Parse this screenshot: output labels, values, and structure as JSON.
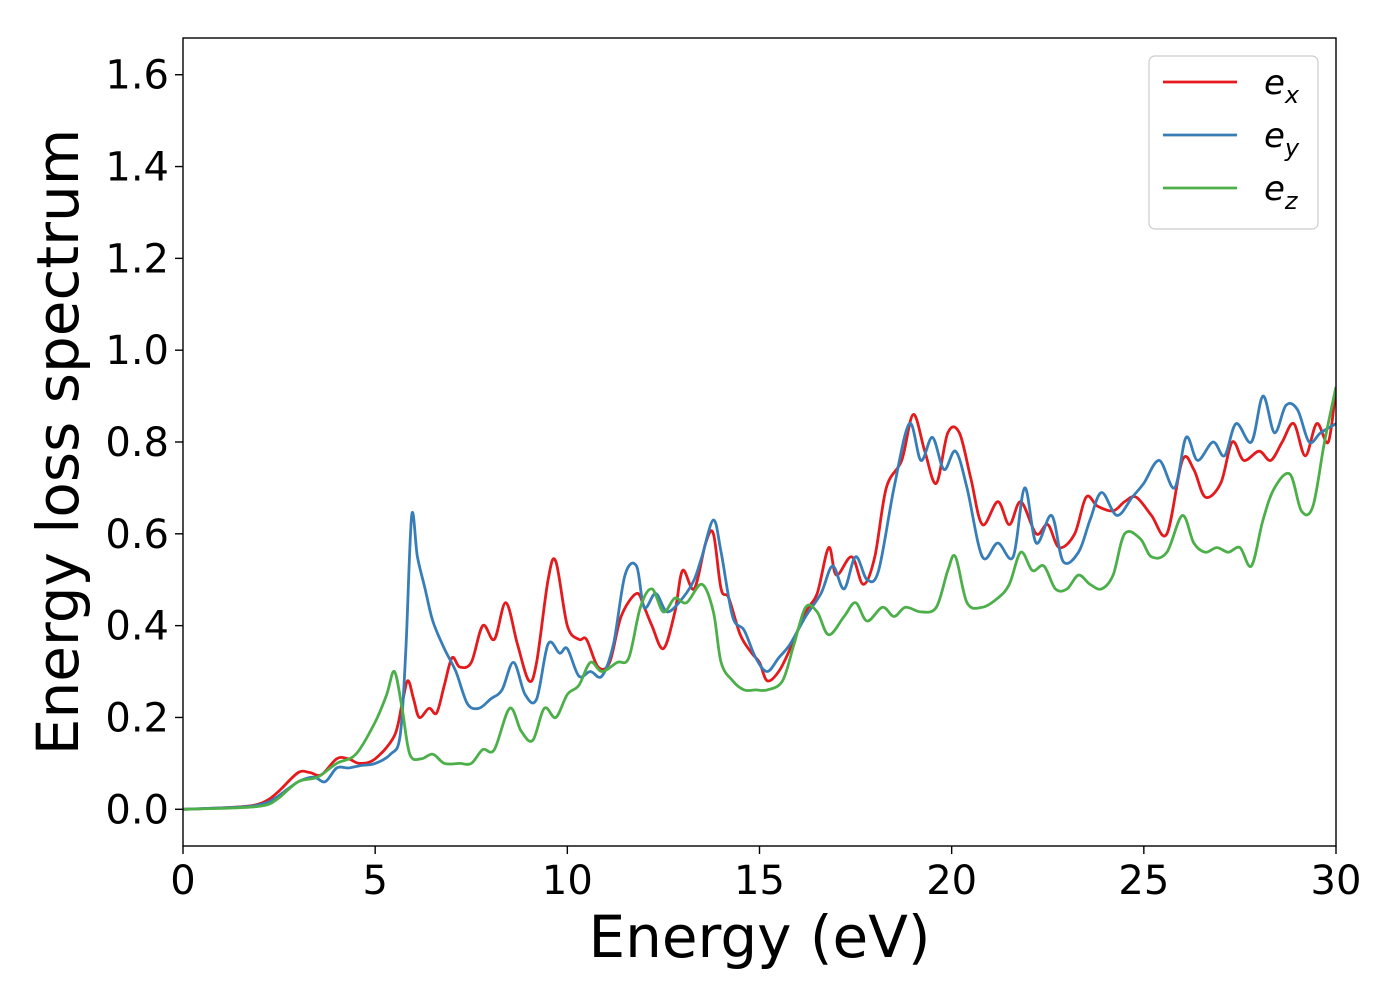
{
  "chart_data": {
    "type": "line",
    "xlabel": "Energy (eV)",
    "ylabel": "Energy loss spectrum",
    "xlim": [
      0,
      30
    ],
    "ylim": [
      -0.08,
      1.68
    ],
    "x_ticks": [
      0,
      5,
      10,
      15,
      20,
      25,
      30
    ],
    "x_tick_labels": [
      "0",
      "5",
      "10",
      "15",
      "20",
      "25",
      "30"
    ],
    "y_ticks": [
      0.0,
      0.2,
      0.4,
      0.6,
      0.8,
      1.0,
      1.2,
      1.4,
      1.6
    ],
    "y_tick_labels": [
      "0.0",
      "0.2",
      "0.4",
      "0.6",
      "0.8",
      "1.0",
      "1.2",
      "1.4",
      "1.6"
    ],
    "grid": false,
    "legend_position": "top-right",
    "series": [
      {
        "name": "e",
        "subscript": "x",
        "color": "#e41a1c",
        "points": [
          [
            0,
            0
          ],
          [
            1,
            0.003
          ],
          [
            1.8,
            0.008
          ],
          [
            2.2,
            0.02
          ],
          [
            2.5,
            0.04
          ],
          [
            3.0,
            0.08
          ],
          [
            3.3,
            0.08
          ],
          [
            3.6,
            0.075
          ],
          [
            4.0,
            0.11
          ],
          [
            4.3,
            0.11
          ],
          [
            4.6,
            0.1
          ],
          [
            5.0,
            0.11
          ],
          [
            5.5,
            0.16
          ],
          [
            5.7,
            0.23
          ],
          [
            5.85,
            0.28
          ],
          [
            6.0,
            0.24
          ],
          [
            6.15,
            0.2
          ],
          [
            6.4,
            0.22
          ],
          [
            6.6,
            0.21
          ],
          [
            6.8,
            0.27
          ],
          [
            7.0,
            0.33
          ],
          [
            7.2,
            0.31
          ],
          [
            7.5,
            0.32
          ],
          [
            7.8,
            0.4
          ],
          [
            8.1,
            0.37
          ],
          [
            8.4,
            0.45
          ],
          [
            8.7,
            0.36
          ],
          [
            9.0,
            0.28
          ],
          [
            9.2,
            0.32
          ],
          [
            9.5,
            0.5
          ],
          [
            9.7,
            0.54
          ],
          [
            10.0,
            0.4
          ],
          [
            10.3,
            0.37
          ],
          [
            10.5,
            0.37
          ],
          [
            10.8,
            0.31
          ],
          [
            11.1,
            0.32
          ],
          [
            11.4,
            0.42
          ],
          [
            11.8,
            0.47
          ],
          [
            12.0,
            0.44
          ],
          [
            12.2,
            0.4
          ],
          [
            12.5,
            0.35
          ],
          [
            12.8,
            0.43
          ],
          [
            13.0,
            0.52
          ],
          [
            13.3,
            0.48
          ],
          [
            13.6,
            0.58
          ],
          [
            13.8,
            0.6
          ],
          [
            14.0,
            0.48
          ],
          [
            14.2,
            0.46
          ],
          [
            14.5,
            0.38
          ],
          [
            14.8,
            0.34
          ],
          [
            15.0,
            0.32
          ],
          [
            15.2,
            0.28
          ],
          [
            15.5,
            0.3
          ],
          [
            15.8,
            0.35
          ],
          [
            16.2,
            0.43
          ],
          [
            16.5,
            0.47
          ],
          [
            16.8,
            0.57
          ],
          [
            17.0,
            0.51
          ],
          [
            17.4,
            0.55
          ],
          [
            17.7,
            0.49
          ],
          [
            18.0,
            0.55
          ],
          [
            18.3,
            0.7
          ],
          [
            18.7,
            0.76
          ],
          [
            19.0,
            0.86
          ],
          [
            19.3,
            0.78
          ],
          [
            19.6,
            0.71
          ],
          [
            19.9,
            0.82
          ],
          [
            20.2,
            0.82
          ],
          [
            20.5,
            0.72
          ],
          [
            20.8,
            0.62
          ],
          [
            21.2,
            0.67
          ],
          [
            21.5,
            0.62
          ],
          [
            21.8,
            0.67
          ],
          [
            22.2,
            0.6
          ],
          [
            22.5,
            0.62
          ],
          [
            22.8,
            0.57
          ],
          [
            23.2,
            0.6
          ],
          [
            23.5,
            0.68
          ],
          [
            23.8,
            0.66
          ],
          [
            24.2,
            0.65
          ],
          [
            24.5,
            0.67
          ],
          [
            24.8,
            0.68
          ],
          [
            25.2,
            0.64
          ],
          [
            25.6,
            0.6
          ],
          [
            26.0,
            0.76
          ],
          [
            26.3,
            0.74
          ],
          [
            26.6,
            0.68
          ],
          [
            27.0,
            0.71
          ],
          [
            27.3,
            0.8
          ],
          [
            27.6,
            0.76
          ],
          [
            28.0,
            0.78
          ],
          [
            28.3,
            0.76
          ],
          [
            28.6,
            0.8
          ],
          [
            28.9,
            0.84
          ],
          [
            29.2,
            0.77
          ],
          [
            29.5,
            0.84
          ],
          [
            29.8,
            0.8
          ],
          [
            30.0,
            0.92
          ]
        ]
      },
      {
        "name": "e",
        "subscript": "y",
        "color": "#377eb8",
        "points": [
          [
            0,
            0
          ],
          [
            1,
            0.003
          ],
          [
            1.8,
            0.007
          ],
          [
            2.2,
            0.015
          ],
          [
            2.5,
            0.03
          ],
          [
            3.0,
            0.06
          ],
          [
            3.4,
            0.07
          ],
          [
            3.7,
            0.06
          ],
          [
            4.0,
            0.09
          ],
          [
            4.3,
            0.09
          ],
          [
            4.6,
            0.095
          ],
          [
            5.0,
            0.1
          ],
          [
            5.4,
            0.12
          ],
          [
            5.65,
            0.16
          ],
          [
            5.8,
            0.35
          ],
          [
            5.95,
            0.64
          ],
          [
            6.1,
            0.55
          ],
          [
            6.3,
            0.48
          ],
          [
            6.5,
            0.41
          ],
          [
            6.8,
            0.35
          ],
          [
            7.1,
            0.3
          ],
          [
            7.4,
            0.23
          ],
          [
            7.7,
            0.22
          ],
          [
            8.0,
            0.24
          ],
          [
            8.3,
            0.26
          ],
          [
            8.6,
            0.32
          ],
          [
            8.9,
            0.25
          ],
          [
            9.2,
            0.24
          ],
          [
            9.5,
            0.36
          ],
          [
            9.8,
            0.34
          ],
          [
            10.0,
            0.35
          ],
          [
            10.3,
            0.29
          ],
          [
            10.6,
            0.3
          ],
          [
            10.9,
            0.29
          ],
          [
            11.2,
            0.36
          ],
          [
            11.5,
            0.51
          ],
          [
            11.8,
            0.53
          ],
          [
            12.0,
            0.44
          ],
          [
            12.3,
            0.47
          ],
          [
            12.6,
            0.43
          ],
          [
            13.0,
            0.46
          ],
          [
            13.3,
            0.5
          ],
          [
            13.5,
            0.55
          ],
          [
            13.8,
            0.63
          ],
          [
            14.0,
            0.56
          ],
          [
            14.3,
            0.42
          ],
          [
            14.6,
            0.39
          ],
          [
            14.9,
            0.33
          ],
          [
            15.2,
            0.3
          ],
          [
            15.5,
            0.33
          ],
          [
            15.8,
            0.36
          ],
          [
            16.2,
            0.42
          ],
          [
            16.6,
            0.47
          ],
          [
            16.9,
            0.53
          ],
          [
            17.2,
            0.48
          ],
          [
            17.5,
            0.55
          ],
          [
            17.8,
            0.5
          ],
          [
            18.1,
            0.52
          ],
          [
            18.5,
            0.7
          ],
          [
            18.9,
            0.84
          ],
          [
            19.2,
            0.76
          ],
          [
            19.5,
            0.81
          ],
          [
            19.8,
            0.74
          ],
          [
            20.1,
            0.78
          ],
          [
            20.4,
            0.7
          ],
          [
            20.8,
            0.55
          ],
          [
            21.2,
            0.58
          ],
          [
            21.6,
            0.55
          ],
          [
            21.9,
            0.7
          ],
          [
            22.2,
            0.58
          ],
          [
            22.6,
            0.64
          ],
          [
            22.9,
            0.54
          ],
          [
            23.3,
            0.56
          ],
          [
            23.6,
            0.63
          ],
          [
            23.9,
            0.69
          ],
          [
            24.3,
            0.64
          ],
          [
            24.7,
            0.68
          ],
          [
            25.0,
            0.71
          ],
          [
            25.4,
            0.76
          ],
          [
            25.8,
            0.7
          ],
          [
            26.1,
            0.81
          ],
          [
            26.4,
            0.76
          ],
          [
            26.8,
            0.8
          ],
          [
            27.1,
            0.77
          ],
          [
            27.4,
            0.84
          ],
          [
            27.8,
            0.8
          ],
          [
            28.1,
            0.9
          ],
          [
            28.4,
            0.82
          ],
          [
            28.7,
            0.88
          ],
          [
            29.0,
            0.87
          ],
          [
            29.3,
            0.8
          ],
          [
            29.6,
            0.82
          ],
          [
            30.0,
            0.84
          ]
        ]
      },
      {
        "name": "e",
        "subscript": "z",
        "color": "#4daf4a",
        "points": [
          [
            0,
            0
          ],
          [
            1,
            0.002
          ],
          [
            1.8,
            0.005
          ],
          [
            2.2,
            0.01
          ],
          [
            2.5,
            0.025
          ],
          [
            3.0,
            0.06
          ],
          [
            3.5,
            0.07
          ],
          [
            4.0,
            0.1
          ],
          [
            4.5,
            0.12
          ],
          [
            5.0,
            0.19
          ],
          [
            5.3,
            0.25
          ],
          [
            5.5,
            0.3
          ],
          [
            5.7,
            0.22
          ],
          [
            5.9,
            0.12
          ],
          [
            6.2,
            0.11
          ],
          [
            6.5,
            0.12
          ],
          [
            6.8,
            0.1
          ],
          [
            7.2,
            0.1
          ],
          [
            7.5,
            0.1
          ],
          [
            7.8,
            0.13
          ],
          [
            8.1,
            0.13
          ],
          [
            8.5,
            0.22
          ],
          [
            8.8,
            0.17
          ],
          [
            9.1,
            0.15
          ],
          [
            9.4,
            0.22
          ],
          [
            9.7,
            0.2
          ],
          [
            10.0,
            0.25
          ],
          [
            10.3,
            0.27
          ],
          [
            10.6,
            0.32
          ],
          [
            10.9,
            0.3
          ],
          [
            11.3,
            0.32
          ],
          [
            11.6,
            0.33
          ],
          [
            11.9,
            0.44
          ],
          [
            12.2,
            0.48
          ],
          [
            12.5,
            0.43
          ],
          [
            12.8,
            0.46
          ],
          [
            13.1,
            0.45
          ],
          [
            13.5,
            0.49
          ],
          [
            13.8,
            0.43
          ],
          [
            14.0,
            0.32
          ],
          [
            14.3,
            0.28
          ],
          [
            14.6,
            0.26
          ],
          [
            14.9,
            0.26
          ],
          [
            15.2,
            0.26
          ],
          [
            15.6,
            0.28
          ],
          [
            15.9,
            0.36
          ],
          [
            16.2,
            0.44
          ],
          [
            16.5,
            0.43
          ],
          [
            16.8,
            0.38
          ],
          [
            17.2,
            0.42
          ],
          [
            17.5,
            0.45
          ],
          [
            17.8,
            0.41
          ],
          [
            18.2,
            0.44
          ],
          [
            18.5,
            0.42
          ],
          [
            18.8,
            0.44
          ],
          [
            19.2,
            0.43
          ],
          [
            19.6,
            0.44
          ],
          [
            19.9,
            0.52
          ],
          [
            20.1,
            0.55
          ],
          [
            20.4,
            0.45
          ],
          [
            20.8,
            0.44
          ],
          [
            21.2,
            0.46
          ],
          [
            21.5,
            0.49
          ],
          [
            21.8,
            0.56
          ],
          [
            22.1,
            0.52
          ],
          [
            22.4,
            0.53
          ],
          [
            22.7,
            0.48
          ],
          [
            23.0,
            0.48
          ],
          [
            23.3,
            0.51
          ],
          [
            23.6,
            0.49
          ],
          [
            23.9,
            0.48
          ],
          [
            24.2,
            0.51
          ],
          [
            24.5,
            0.6
          ],
          [
            24.9,
            0.59
          ],
          [
            25.2,
            0.55
          ],
          [
            25.6,
            0.56
          ],
          [
            26.0,
            0.64
          ],
          [
            26.3,
            0.58
          ],
          [
            26.6,
            0.56
          ],
          [
            26.9,
            0.57
          ],
          [
            27.2,
            0.56
          ],
          [
            27.5,
            0.57
          ],
          [
            27.8,
            0.53
          ],
          [
            28.1,
            0.63
          ],
          [
            28.4,
            0.7
          ],
          [
            28.8,
            0.73
          ],
          [
            29.1,
            0.65
          ],
          [
            29.4,
            0.66
          ],
          [
            29.7,
            0.8
          ],
          [
            30.0,
            0.92
          ]
        ]
      }
    ]
  }
}
